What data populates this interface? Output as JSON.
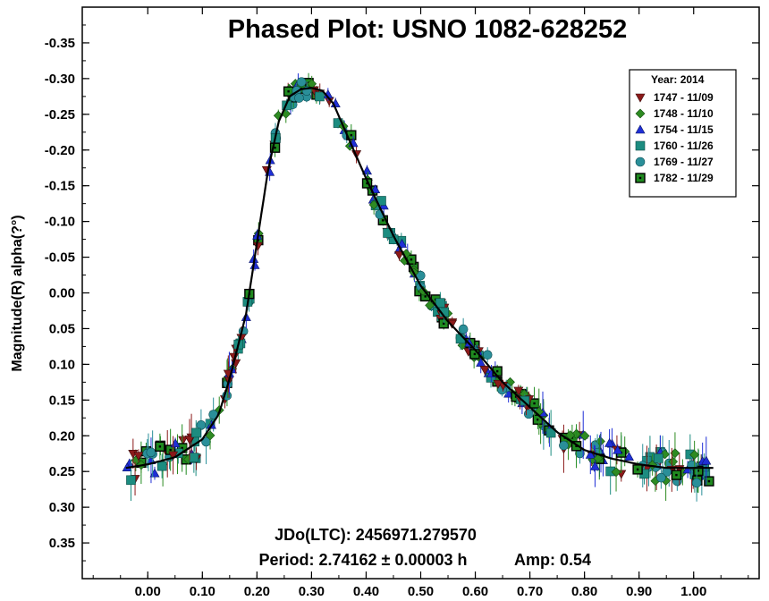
{
  "chart_data": {
    "type": "scatter",
    "title": "Phased Plot: USNO 1082-628252",
    "ylabel": "Magnitude(R) alpha(?°)",
    "xlabel": "",
    "xlim": [
      -0.12,
      1.12
    ],
    "ylim": [
      0.4,
      -0.4
    ],
    "y_inverted": true,
    "x_ticks": [
      "0.00",
      "0.10",
      "0.20",
      "0.30",
      "0.40",
      "0.50",
      "0.60",
      "0.70",
      "0.80",
      "0.90",
      "1.00"
    ],
    "x_tick_values": [
      0,
      0.1,
      0.2,
      0.3,
      0.4,
      0.5,
      0.6,
      0.7,
      0.8,
      0.9,
      1.0
    ],
    "y_ticks": [
      "-0.35",
      "-0.30",
      "-0.25",
      "-0.20",
      "-0.15",
      "-0.10",
      "-0.05",
      "0.00",
      "0.05",
      "0.10",
      "0.15",
      "0.20",
      "0.25",
      "0.30",
      "0.35"
    ],
    "y_tick_values": [
      -0.35,
      -0.3,
      -0.25,
      -0.2,
      -0.15,
      -0.1,
      -0.05,
      0.0,
      0.05,
      0.1,
      0.15,
      0.2,
      0.25,
      0.3,
      0.35
    ],
    "legend": {
      "title": "Year: 2014",
      "placement": "top-right",
      "entries": [
        {
          "label": "1747 - 11/09",
          "marker": "triangle-down",
          "color": "#8b1a1a"
        },
        {
          "label": "1748 - 11/10",
          "marker": "diamond",
          "color": "#2e8b22"
        },
        {
          "label": "1754 - 11/15",
          "marker": "triangle-up",
          "color": "#1f2fd6"
        },
        {
          "label": "1760 - 11/26",
          "marker": "square",
          "color": "#1c8c80"
        },
        {
          "label": "1769 - 11/27",
          "marker": "circle",
          "color": "#2a8f99"
        },
        {
          "label": "1782 - 11/29",
          "marker": "square-dot",
          "color": "#1f8a1f"
        }
      ]
    },
    "annotations": {
      "epoch": "JDo(LTC): 2456971.279570",
      "period": "Period: 2.74162 ± 0.00003 h",
      "amp": "Amp: 0.54"
    },
    "fit_curve": {
      "x": [
        -0.04,
        0.0,
        0.05,
        0.1,
        0.13,
        0.15,
        0.18,
        0.2,
        0.22,
        0.24,
        0.26,
        0.28,
        0.3,
        0.32,
        0.34,
        0.36,
        0.38,
        0.4,
        0.45,
        0.5,
        0.55,
        0.6,
        0.65,
        0.7,
        0.75,
        0.8,
        0.85,
        0.9,
        0.95,
        1.0,
        1.04
      ],
      "y": [
        0.245,
        0.24,
        0.23,
        0.205,
        0.17,
        0.12,
        0.03,
        -0.07,
        -0.17,
        -0.24,
        -0.275,
        -0.285,
        -0.287,
        -0.283,
        -0.265,
        -0.23,
        -0.195,
        -0.16,
        -0.08,
        -0.01,
        0.04,
        0.08,
        0.125,
        0.16,
        0.195,
        0.22,
        0.232,
        0.24,
        0.245,
        0.245,
        0.245
      ]
    },
    "grid": false
  }
}
